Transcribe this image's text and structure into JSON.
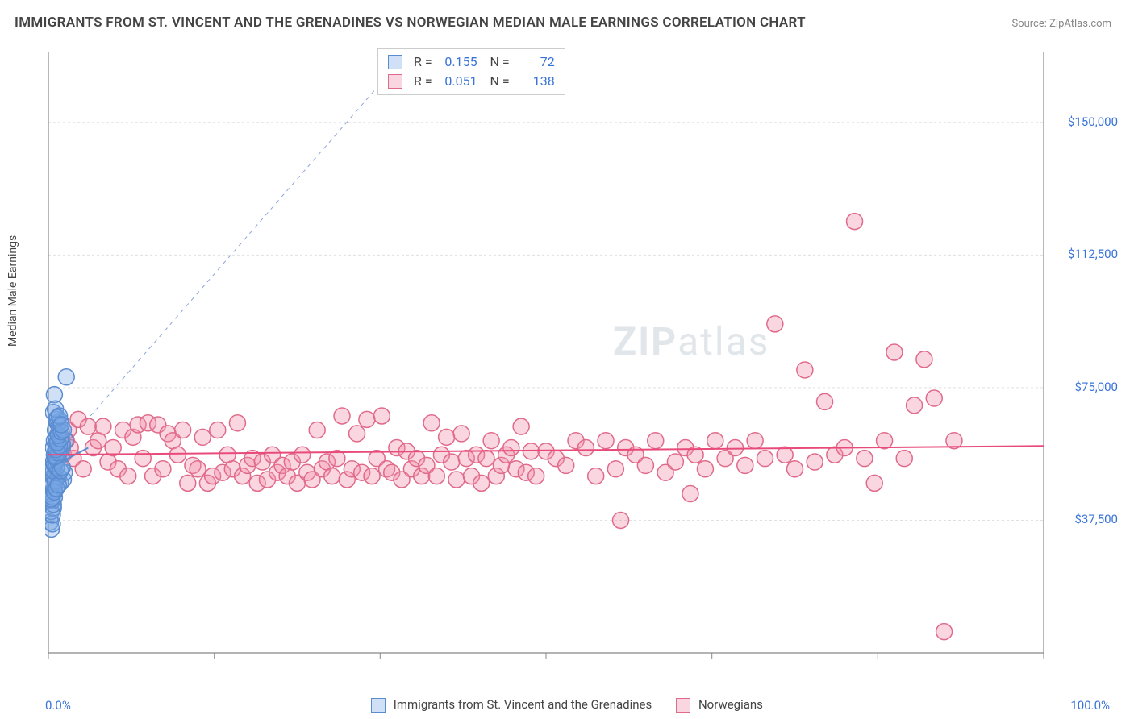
{
  "title": "IMMIGRANTS FROM ST. VINCENT AND THE GRENADINES VS NORWEGIAN MEDIAN MALE EARNINGS CORRELATION CHART",
  "source": "Source: ZipAtlas.com",
  "y_axis_label": "Median Male Earnings",
  "watermark": {
    "text_bold": "ZIP",
    "text_light": "atlas"
  },
  "chart": {
    "type": "scatter",
    "xlim": [
      0,
      100
    ],
    "ylim": [
      0,
      170000
    ],
    "x_ticks": [
      0,
      16.67,
      33.33,
      50,
      66.67,
      83.33,
      100
    ],
    "x_tick_labels": {
      "0": "0.0%",
      "100": "100.0%"
    },
    "y_gridlines": [
      37500,
      75000,
      112500,
      150000
    ],
    "y_tick_labels": [
      "$37,500",
      "$75,000",
      "$112,500",
      "$150,000"
    ],
    "grid_color": "#e0e0e0",
    "axis_color": "#888888",
    "background_color": "#ffffff",
    "marker_radius": 10,
    "marker_stroke_width": 1.5,
    "series": [
      {
        "name": "Immigrants from St. Vincent and the Grenadines",
        "fill": "rgba(120,165,230,0.35)",
        "stroke": "#5a8cd0",
        "r_value": "0.155",
        "n_value": "72",
        "trend": {
          "x1": 0,
          "y1": 52000,
          "x2": 4,
          "y2": 58000,
          "color": "#5a8cd0",
          "width": 2
        },
        "points": [
          [
            0.2,
            37000
          ],
          [
            0.3,
            35000
          ],
          [
            0.4,
            36500
          ],
          [
            0.3,
            40000
          ],
          [
            0.5,
            41000
          ],
          [
            0.4,
            43000
          ],
          [
            0.6,
            44000
          ],
          [
            0.3,
            45000
          ],
          [
            0.5,
            46000
          ],
          [
            0.4,
            48000
          ],
          [
            0.6,
            49000
          ],
          [
            0.5,
            50000
          ],
          [
            0.7,
            51000
          ],
          [
            0.4,
            52000
          ],
          [
            0.6,
            53000
          ],
          [
            0.5,
            54000
          ],
          [
            0.8,
            55000
          ],
          [
            0.6,
            56000
          ],
          [
            0.7,
            57000
          ],
          [
            0.5,
            58000
          ],
          [
            0.9,
            59000
          ],
          [
            0.6,
            60000
          ],
          [
            0.8,
            61000
          ],
          [
            1.0,
            62000
          ],
          [
            0.7,
            63000
          ],
          [
            1.1,
            64000
          ],
          [
            0.9,
            65000
          ],
          [
            1.2,
            65500
          ],
          [
            0.8,
            66000
          ],
          [
            1.0,
            55000
          ],
          [
            1.3,
            56000
          ],
          [
            1.1,
            57000
          ],
          [
            1.4,
            58000
          ],
          [
            1.2,
            48000
          ],
          [
            1.5,
            49000
          ],
          [
            1.0,
            50000
          ],
          [
            1.6,
            51000
          ],
          [
            1.3,
            61000
          ],
          [
            1.7,
            60000
          ],
          [
            1.4,
            59000
          ],
          [
            0.4,
            39000
          ],
          [
            0.5,
            42000
          ],
          [
            0.3,
            43500
          ],
          [
            0.6,
            46500
          ],
          [
            0.4,
            47500
          ],
          [
            0.7,
            48500
          ],
          [
            0.5,
            51500
          ],
          [
            0.8,
            52500
          ],
          [
            0.6,
            53500
          ],
          [
            0.9,
            54500
          ],
          [
            0.7,
            55500
          ],
          [
            1.0,
            56500
          ],
          [
            0.8,
            57500
          ],
          [
            1.1,
            58500
          ],
          [
            0.9,
            59500
          ],
          [
            1.2,
            60500
          ],
          [
            1.0,
            61500
          ],
          [
            1.3,
            62500
          ],
          [
            1.5,
            63000
          ],
          [
            0.6,
            73000
          ],
          [
            1.8,
            78000
          ],
          [
            0.5,
            68000
          ],
          [
            0.7,
            69000
          ],
          [
            0.9,
            66500
          ],
          [
            1.1,
            67000
          ],
          [
            1.3,
            64500
          ],
          [
            0.4,
            44000
          ],
          [
            0.6,
            45500
          ],
          [
            0.8,
            46500
          ],
          [
            1.0,
            47500
          ],
          [
            1.2,
            51500
          ],
          [
            1.4,
            52500
          ]
        ]
      },
      {
        "name": "Norwegians",
        "fill": "rgba(240,140,165,0.35)",
        "stroke": "#e06a8a",
        "r_value": "0.051",
        "n_value": "138",
        "trend": {
          "x1": 0,
          "y1": 56000,
          "x2": 100,
          "y2": 58500,
          "color": "#e84a7a",
          "width": 2
        },
        "points": [
          [
            1.5,
            56000
          ],
          [
            2,
            63000
          ],
          [
            2.5,
            55000
          ],
          [
            3,
            66000
          ],
          [
            3.5,
            52000
          ],
          [
            4,
            64000
          ],
          [
            4.5,
            58000
          ],
          [
            5,
            60000
          ],
          [
            5.5,
            64000
          ],
          [
            6,
            54000
          ],
          [
            6.5,
            58000
          ],
          [
            7,
            52000
          ],
          [
            7.5,
            63000
          ],
          [
            8,
            50000
          ],
          [
            8.5,
            61000
          ],
          [
            9,
            64500
          ],
          [
            9.5,
            55000
          ],
          [
            10,
            65000
          ],
          [
            10.5,
            50000
          ],
          [
            11,
            64500
          ],
          [
            11.5,
            52000
          ],
          [
            12,
            62000
          ],
          [
            12.5,
            60000
          ],
          [
            13,
            56000
          ],
          [
            13.5,
            63000
          ],
          [
            14,
            48000
          ],
          [
            14.5,
            53000
          ],
          [
            15,
            52000
          ],
          [
            15.5,
            61000
          ],
          [
            16,
            48000
          ],
          [
            16.5,
            50000
          ],
          [
            17,
            63000
          ],
          [
            17.5,
            51000
          ],
          [
            18,
            56000
          ],
          [
            18.5,
            52000
          ],
          [
            19,
            65000
          ],
          [
            19.5,
            50000
          ],
          [
            20,
            53000
          ],
          [
            20.5,
            55000
          ],
          [
            21,
            48000
          ],
          [
            21.5,
            54000
          ],
          [
            22,
            49000
          ],
          [
            22.5,
            56000
          ],
          [
            23,
            51000
          ],
          [
            23.5,
            53000
          ],
          [
            24,
            50000
          ],
          [
            24.5,
            54000
          ],
          [
            25,
            48000
          ],
          [
            25.5,
            56000
          ],
          [
            26,
            51000
          ],
          [
            26.5,
            49000
          ],
          [
            27,
            63000
          ],
          [
            27.5,
            52000
          ],
          [
            28,
            54000
          ],
          [
            28.5,
            50000
          ],
          [
            29,
            55000
          ],
          [
            29.5,
            67000
          ],
          [
            30,
            49000
          ],
          [
            30.5,
            52000
          ],
          [
            31,
            62000
          ],
          [
            31.5,
            51000
          ],
          [
            32,
            66000
          ],
          [
            32.5,
            50000
          ],
          [
            33,
            55000
          ],
          [
            33.5,
            67000
          ],
          [
            34,
            52000
          ],
          [
            34.5,
            51000
          ],
          [
            35,
            58000
          ],
          [
            35.5,
            49000
          ],
          [
            36,
            57000
          ],
          [
            36.5,
            52000
          ],
          [
            37,
            55000
          ],
          [
            37.5,
            50000
          ],
          [
            38,
            53000
          ],
          [
            38.5,
            65000
          ],
          [
            39,
            50000
          ],
          [
            39.5,
            56000
          ],
          [
            40,
            61000
          ],
          [
            40.5,
            54000
          ],
          [
            41,
            49000
          ],
          [
            41.5,
            62000
          ],
          [
            42,
            55000
          ],
          [
            42.5,
            50000
          ],
          [
            43,
            56000
          ],
          [
            43.5,
            48000
          ],
          [
            44,
            55000
          ],
          [
            44.5,
            60000
          ],
          [
            45,
            50000
          ],
          [
            45.5,
            53000
          ],
          [
            46,
            56000
          ],
          [
            46.5,
            58000
          ],
          [
            47,
            52000
          ],
          [
            47.5,
            64000
          ],
          [
            48,
            51000
          ],
          [
            48.5,
            57000
          ],
          [
            49,
            50000
          ],
          [
            50,
            57000
          ],
          [
            51,
            55000
          ],
          [
            52,
            53000
          ],
          [
            53,
            60000
          ],
          [
            54,
            58000
          ],
          [
            55,
            50000
          ],
          [
            56,
            60000
          ],
          [
            57,
            52000
          ],
          [
            57.5,
            37500
          ],
          [
            58,
            58000
          ],
          [
            59,
            56000
          ],
          [
            60,
            53000
          ],
          [
            61,
            60000
          ],
          [
            62,
            51000
          ],
          [
            63,
            54000
          ],
          [
            64,
            58000
          ],
          [
            64.5,
            45000
          ],
          [
            65,
            56000
          ],
          [
            66,
            52000
          ],
          [
            67,
            60000
          ],
          [
            68,
            55000
          ],
          [
            69,
            58000
          ],
          [
            70,
            53000
          ],
          [
            71,
            60000
          ],
          [
            72,
            55000
          ],
          [
            73,
            93000
          ],
          [
            74,
            56000
          ],
          [
            75,
            52000
          ],
          [
            76,
            80000
          ],
          [
            77,
            54000
          ],
          [
            78,
            71000
          ],
          [
            79,
            56000
          ],
          [
            80,
            58000
          ],
          [
            81,
            122000
          ],
          [
            82,
            55000
          ],
          [
            83,
            48000
          ],
          [
            84,
            60000
          ],
          [
            85,
            85000
          ],
          [
            86,
            55000
          ],
          [
            87,
            70000
          ],
          [
            88,
            83000
          ],
          [
            89,
            72000
          ],
          [
            90,
            6000
          ],
          [
            91,
            60000
          ],
          [
            1.8,
            60000
          ],
          [
            2.2,
            58000
          ]
        ]
      }
    ],
    "callout_line": {
      "x1": 0.5,
      "y1": 55000,
      "x2": 34,
      "y2": 163000,
      "color": "#8aa5d8",
      "dash": "5,5"
    }
  },
  "legend": {
    "items": [
      {
        "label": "Immigrants from St. Vincent and the Grenadines",
        "fill": "rgba(120,165,230,0.35)",
        "stroke": "#5a8cd0"
      },
      {
        "label": "Norwegians",
        "fill": "rgba(240,140,165,0.35)",
        "stroke": "#e06a8a"
      }
    ]
  }
}
